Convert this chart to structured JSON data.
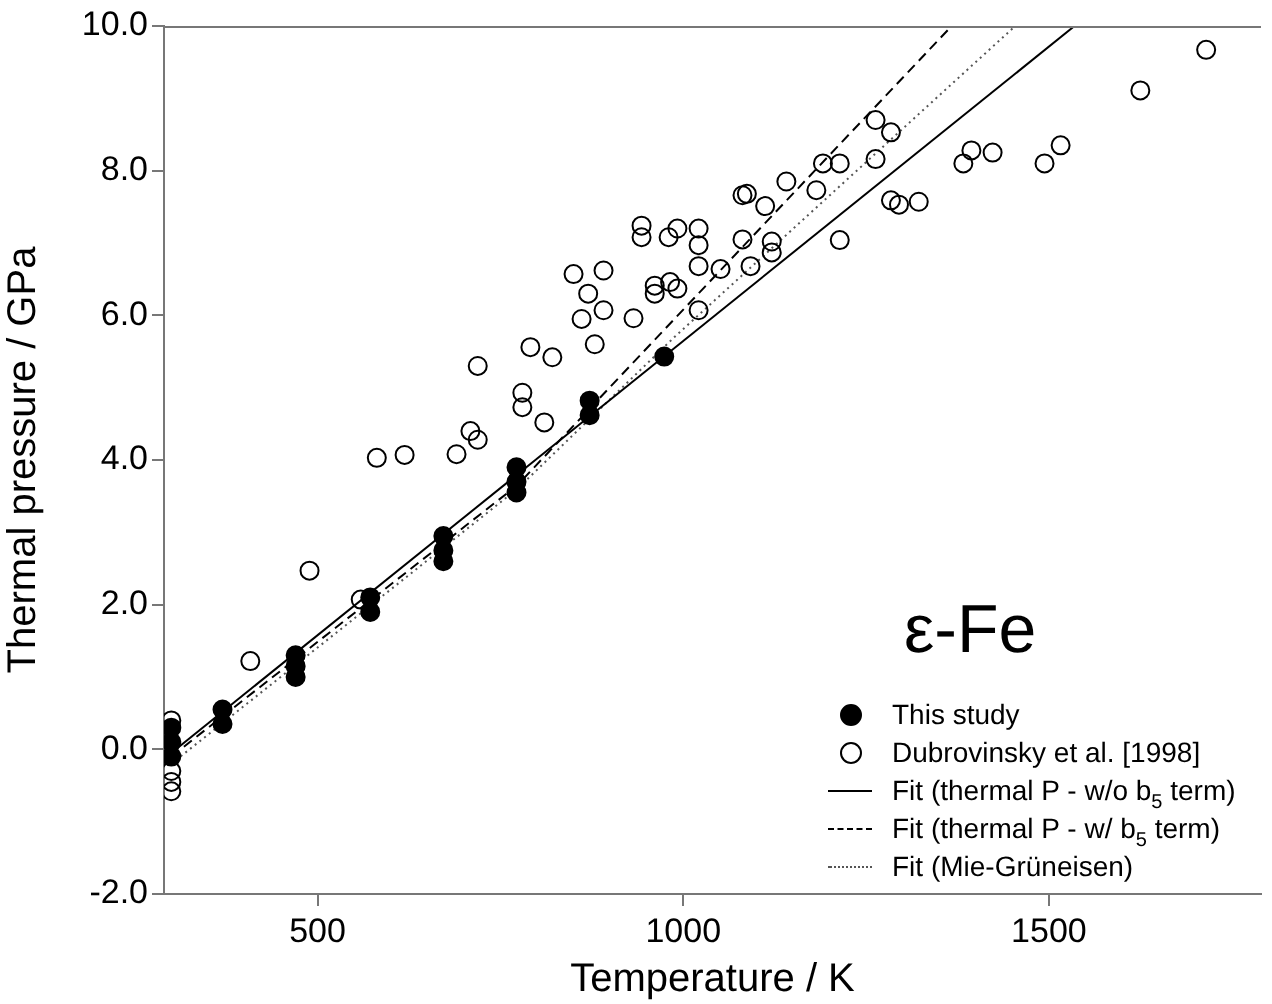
{
  "chart_data": {
    "type": "scatter",
    "xlabel": "Temperature / K",
    "ylabel": "Thermal pressure / GPa",
    "annotations": [
      "ε-Fe"
    ],
    "xlim": [
      290,
      1790
    ],
    "xticks": [
      500,
      1000,
      1500
    ],
    "ylim": [
      -2,
      10
    ],
    "yticks": [
      {
        "value": -2,
        "label": "-2.0"
      },
      {
        "value": 0,
        "label": "0.0"
      },
      {
        "value": 2,
        "label": "2.0"
      },
      {
        "value": 4,
        "label": "4.0"
      },
      {
        "value": 6,
        "label": "6.0"
      },
      {
        "value": 8,
        "label": "8.0"
      },
      {
        "value": 10,
        "label": "10.0"
      }
    ],
    "grid": false,
    "legend": "bottom right",
    "marker": "circle",
    "series": [
      {
        "name": "This study",
        "color": "#000000",
        "x": [
          300,
          300,
          300,
          370,
          370,
          470,
          470,
          470,
          572,
          572,
          672,
          672,
          672,
          772,
          772,
          772,
          872,
          872,
          974
        ],
        "values": [
          0.3,
          0.1,
          -0.1,
          0.55,
          0.35,
          1.3,
          1.15,
          1.0,
          2.1,
          1.9,
          2.95,
          2.75,
          2.6,
          3.9,
          3.7,
          3.55,
          4.82,
          4.62,
          5.43
        ]
      },
      {
        "name": "Dubrovinsky et al. [1998]",
        "color": "#000000",
        "x": [
          300,
          300,
          300,
          300,
          408,
          489,
          559,
          581,
          619,
          690,
          709,
          719,
          719,
          780,
          780,
          791,
          810,
          821,
          850,
          870,
          891,
          861,
          891,
          879,
          932,
          943,
          943,
          980,
          992,
          961,
          961,
          982,
          992,
          1021,
          1021,
          1021,
          1021,
          1051,
          1081,
          1087,
          1081,
          1092,
          1112,
          1121,
          1121,
          1141,
          1182,
          1191,
          1214,
          1214,
          1263,
          1284,
          1263,
          1284,
          1295,
          1322,
          1383,
          1394,
          1423,
          1494,
          1516,
          1625,
          1715
        ],
        "values": [
          0.4,
          -0.3,
          -0.45,
          -0.58,
          1.22,
          2.47,
          2.07,
          4.03,
          4.07,
          4.08,
          4.4,
          4.28,
          5.3,
          4.93,
          4.73,
          5.56,
          4.52,
          5.42,
          6.57,
          6.3,
          6.62,
          5.95,
          6.07,
          5.6,
          5.96,
          7.24,
          7.08,
          7.08,
          7.2,
          6.41,
          6.3,
          6.46,
          6.37,
          7.2,
          6.97,
          6.68,
          6.07,
          6.64,
          7.66,
          7.68,
          7.05,
          6.68,
          7.51,
          7.02,
          6.87,
          7.85,
          7.73,
          8.1,
          8.1,
          7.04,
          8.7,
          8.53,
          8.16,
          7.59,
          7.53,
          7.57,
          8.1,
          8.28,
          8.25,
          8.1,
          8.35,
          9.11,
          9.67
        ]
      },
      {
        "name": "Fit (thermal P - w/o b$_{5}$ term)",
        "type": "line",
        "marker": "none",
        "line_style": "solid",
        "color": "#000000",
        "x": [
          300,
          1535
        ],
        "values": [
          -0.05,
          10
        ]
      },
      {
        "name": "Fit (thermal P - w/ b$_{5}$ term)",
        "type": "line",
        "marker": "none",
        "line_style": "dashed",
        "color": "#000000",
        "x": [
          300,
          773,
          988,
          1367
        ],
        "values": [
          -0.1,
          3.65,
          5.95,
          10
        ]
      },
      {
        "name": "Fit (Mie-Grüneisen)",
        "type": "line",
        "marker": "none",
        "line_style": "dotted",
        "color": "#555555",
        "x": [
          300,
          773,
          988,
          1454
        ],
        "values": [
          -0.2,
          3.6,
          5.7,
          10
        ]
      }
    ]
  }
}
